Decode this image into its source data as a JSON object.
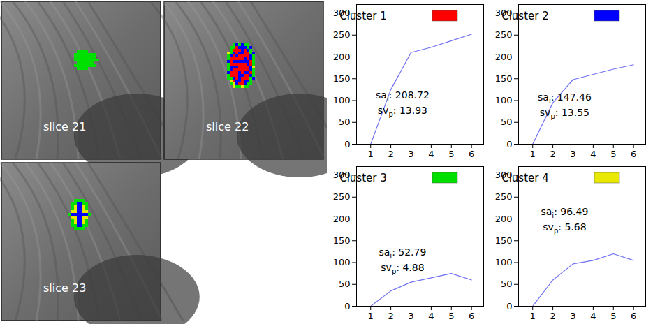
{
  "images": [
    {
      "label": "slice 21"
    },
    {
      "label": "slice 22"
    },
    {
      "label": "slice 23"
    }
  ],
  "chart_data": [
    {
      "type": "line",
      "x": [
        1,
        2,
        3,
        4,
        5,
        6
      ],
      "series": [
        {
          "name": "Cluster 1",
          "color": "#ff0000",
          "values": [
            0,
            125,
            210,
            222,
            237,
            252
          ]
        }
      ],
      "xlim": [
        0.3,
        6.6
      ],
      "ylim": [
        0,
        320
      ],
      "xticks": [
        1,
        2,
        3,
        4,
        5,
        6
      ],
      "yticks": [
        0,
        50,
        100,
        150,
        200,
        250,
        300
      ],
      "legend": "top-left",
      "annotations": [
        {
          "base": "sa",
          "sub": "i",
          "rest": ": 208.72",
          "x": 2.6,
          "y": 110
        },
        {
          "base": "sv",
          "sub": "p",
          "rest": ": 13.93",
          "x": 2.6,
          "y": 75
        }
      ]
    },
    {
      "type": "line",
      "x": [
        1,
        2,
        3,
        4,
        5,
        6
      ],
      "series": [
        {
          "name": "Cluster 2",
          "color": "#0000ff",
          "values": [
            0,
            95,
            148,
            160,
            172,
            182
          ]
        }
      ],
      "xlim": [
        0.3,
        6.6
      ],
      "ylim": [
        0,
        320
      ],
      "xticks": [
        1,
        2,
        3,
        4,
        5,
        6
      ],
      "yticks": [
        0,
        50,
        100,
        150,
        200,
        250,
        300
      ],
      "legend": "top-left",
      "annotations": [
        {
          "base": "sa",
          "sub": "i",
          "rest": ": 147.46",
          "x": 2.6,
          "y": 105
        },
        {
          "base": "sv",
          "sub": "p",
          "rest": ": 13.55",
          "x": 2.6,
          "y": 70
        }
      ]
    },
    {
      "type": "line",
      "x": [
        1,
        2,
        3,
        4,
        5,
        6
      ],
      "series": [
        {
          "name": "Cluster 3",
          "color": "#00e000",
          "values": [
            0,
            35,
            55,
            65,
            75,
            60
          ]
        }
      ],
      "xlim": [
        0.3,
        6.6
      ],
      "ylim": [
        0,
        320
      ],
      "xticks": [
        1,
        2,
        3,
        4,
        5,
        6
      ],
      "yticks": [
        0,
        50,
        100,
        150,
        200,
        250,
        300
      ],
      "legend": "top-left",
      "annotations": [
        {
          "base": "sa",
          "sub": "i",
          "rest": ": 52.79",
          "x": 2.6,
          "y": 121
        },
        {
          "base": "sv",
          "sub": "p",
          "rest": ": 4.88",
          "x": 2.6,
          "y": 87
        }
      ]
    },
    {
      "type": "line",
      "x": [
        1,
        2,
        3,
        4,
        5,
        6
      ],
      "series": [
        {
          "name": "Cluster 4",
          "color": "#e8e800",
          "values": [
            0,
            60,
            97,
            105,
            120,
            105
          ]
        }
      ],
      "xlim": [
        0.3,
        6.6
      ],
      "ylim": [
        0,
        320
      ],
      "xticks": [
        1,
        2,
        3,
        4,
        5,
        6
      ],
      "yticks": [
        0,
        50,
        100,
        150,
        200,
        250,
        300
      ],
      "legend": "top-left",
      "annotations": [
        {
          "base": "sa",
          "sub": "i",
          "rest": ": 96.49",
          "x": 2.6,
          "y": 215
        },
        {
          "base": "sv",
          "sub": "p",
          "rest": ": 5.68",
          "x": 2.6,
          "y": 180
        }
      ]
    }
  ]
}
